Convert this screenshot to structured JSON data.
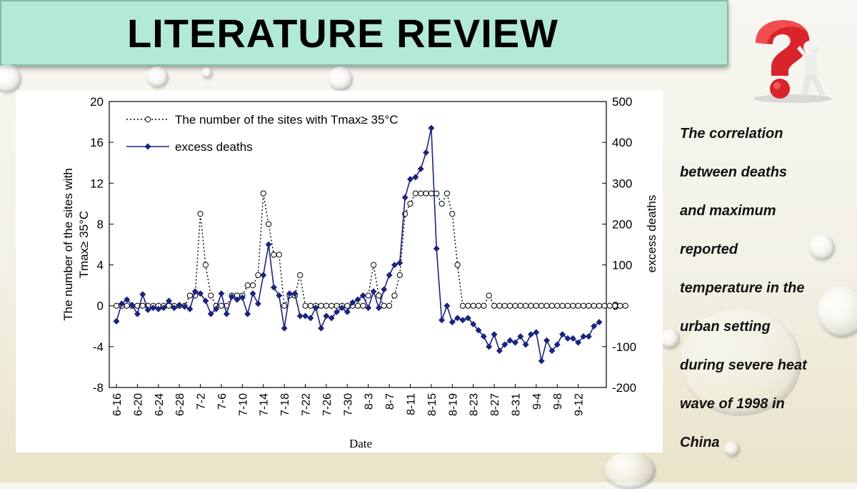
{
  "slide": {
    "title": "LITERATURE REVIEW",
    "side_lines": [
      "The correlation",
      "between deaths",
      "and maximum",
      "reported",
      "temperature in the",
      "urban setting",
      "during severe heat",
      "wave of 1998 in",
      "China"
    ],
    "icon": "question-mark-person-icon"
  },
  "chart_data": {
    "type": "line",
    "xlabel": "Date",
    "ylabel_left": "The number of the sites with Tmax≥ 35°C",
    "ylabel_right": "excess deaths",
    "ylim_left": [
      -8,
      20
    ],
    "ylim_right": [
      -200,
      500
    ],
    "yticks_left": [
      "20",
      "16",
      "12",
      "8",
      "4",
      "0",
      "-4",
      "-8"
    ],
    "yticks_right": [
      "500",
      "400",
      "300",
      "200",
      "100",
      "0",
      "-100",
      "-200"
    ],
    "xtick_labels": [
      "6-16",
      "6-20",
      "6-24",
      "6-28",
      "7-2",
      "7-6",
      "7-10",
      "7-14",
      "7-18",
      "7-22",
      "7-26",
      "7-30",
      "8-3",
      "8-7",
      "8-11",
      "8-15",
      "8-19",
      "8-23",
      "8-27",
      "8-31",
      "9-4",
      "9-8",
      "9-12"
    ],
    "x_start": "6-16",
    "grid": false,
    "legend_position": "top-left",
    "series": [
      {
        "name": "The number of the sites with Tmax≥ 35°C",
        "axis": "left",
        "style": "dotted-open-circle",
        "color": "#000000",
        "values": [
          0,
          0,
          0,
          0,
          0,
          0,
          0,
          0,
          0,
          0,
          0,
          0,
          0,
          0,
          1,
          1,
          9,
          4,
          1,
          0,
          0,
          0,
          1,
          1,
          1,
          2,
          2,
          3,
          11,
          8,
          5,
          5,
          0,
          1,
          1,
          3,
          0,
          0,
          0,
          0,
          0,
          0,
          0,
          0,
          0,
          0,
          0,
          0,
          1,
          4,
          1,
          0,
          0,
          1,
          3,
          9,
          10,
          11,
          11,
          11,
          11,
          11,
          10,
          11,
          9,
          4,
          0,
          0,
          0,
          0,
          0,
          1,
          0,
          0,
          0,
          0,
          0,
          0,
          0,
          0,
          0,
          0,
          0,
          0,
          0,
          0,
          0,
          0,
          0,
          0,
          0,
          0,
          0,
          0,
          0,
          0,
          0,
          0
        ]
      },
      {
        "name": "excess deaths",
        "axis": "right",
        "style": "solid-filled-diamond",
        "color": "#1a237e",
        "values": [
          -38,
          5,
          15,
          2,
          -20,
          28,
          -10,
          -5,
          -8,
          -5,
          12,
          -5,
          2,
          -2,
          -8,
          35,
          30,
          12,
          -20,
          -8,
          30,
          -20,
          22,
          15,
          20,
          -20,
          30,
          5,
          75,
          150,
          45,
          25,
          -55,
          30,
          30,
          -25,
          -25,
          -30,
          -5,
          -55,
          -25,
          -30,
          -15,
          -5,
          -15,
          8,
          15,
          25,
          -5,
          35,
          -5,
          40,
          75,
          100,
          105,
          265,
          310,
          315,
          335,
          375,
          435,
          140,
          -35,
          0,
          -40,
          -30,
          -35,
          -30,
          -45,
          -60,
          -75,
          -100,
          -70,
          -110,
          -95,
          -85,
          -90,
          -75,
          -95,
          -70,
          -65,
          -135,
          -85,
          -110,
          -95,
          -70,
          -80,
          -80,
          -90,
          -75,
          -75,
          -50,
          -40
        ]
      }
    ]
  }
}
